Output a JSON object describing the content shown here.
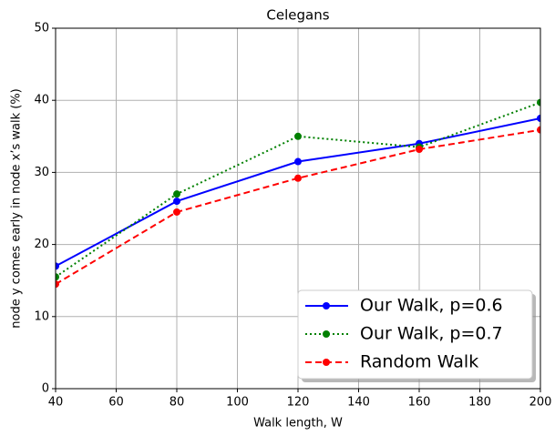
{
  "chart_data": {
    "type": "line",
    "title": "Celegans",
    "xlabel": "Walk length, W",
    "ylabel": "node y comes early in node x’s walk (%)",
    "x": [
      40,
      80,
      120,
      160,
      200
    ],
    "series": [
      {
        "name": "Our Walk, p=0.6",
        "color": "#0000ff",
        "linestyle": "solid",
        "values": [
          17.0,
          26.0,
          31.5,
          34.0,
          37.5
        ]
      },
      {
        "name": "Our Walk, p=0.7",
        "color": "#008000",
        "linestyle": "dotted",
        "values": [
          15.5,
          27.0,
          35.0,
          33.5,
          39.7
        ]
      },
      {
        "name": "Random Walk",
        "color": "#ff0000",
        "linestyle": "dashed",
        "values": [
          14.5,
          24.5,
          29.2,
          33.2,
          35.9
        ]
      }
    ],
    "xlim": [
      40,
      200
    ],
    "xticks": [
      40,
      60,
      80,
      100,
      120,
      140,
      160,
      180,
      200
    ],
    "ylim": [
      0,
      50
    ],
    "yticks": [
      0,
      10,
      20,
      30,
      40,
      50
    ],
    "grid": true,
    "legend": "lower right"
  }
}
